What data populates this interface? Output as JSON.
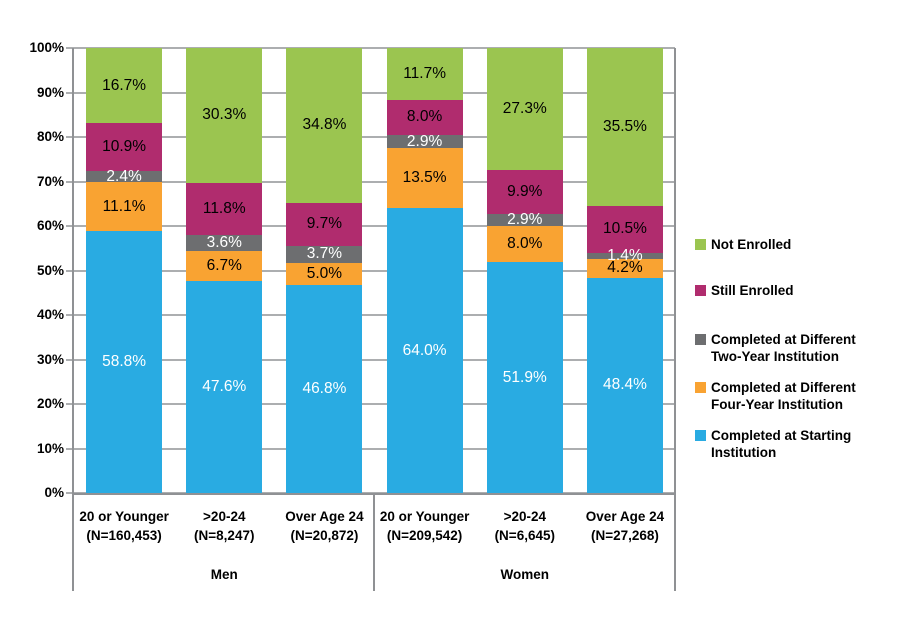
{
  "chart_data": {
    "type": "bar",
    "variant": "100-percent-stacked-column",
    "title": "",
    "x_groups": [
      "Men",
      "Women"
    ],
    "categories": [
      {
        "age_label": "20 or Younger",
        "n_label": "(N=160,453)",
        "group": "Men"
      },
      {
        "age_label": ">20-24",
        "n_label": "(N=8,247)",
        "group": "Men"
      },
      {
        "age_label": "Over Age 24",
        "n_label": "(N=20,872)",
        "group": "Men"
      },
      {
        "age_label": "20 or Younger",
        "n_label": "(N=209,542)",
        "group": "Women"
      },
      {
        "age_label": ">20-24",
        "n_label": "(N=6,645)",
        "group": "Women"
      },
      {
        "age_label": "Over Age 24",
        "n_label": "(N=27,268)",
        "group": "Women"
      }
    ],
    "series": [
      {
        "name": "Completed at Starting Institution",
        "color": "#29ABE2",
        "label_color": "#FFFFFF",
        "values": [
          58.8,
          47.6,
          46.8,
          64.0,
          51.9,
          48.4
        ]
      },
      {
        "name": "Completed at Different Four-Year Institution",
        "color": "#F9A332",
        "label_color": "#000000",
        "values": [
          11.1,
          6.7,
          5.0,
          13.5,
          8.0,
          4.2
        ]
      },
      {
        "name": "Completed at Different Two-Year Institution",
        "color": "#6D6E70",
        "label_color": "#FFFFFF",
        "values": [
          2.4,
          3.6,
          3.7,
          2.9,
          2.9,
          1.4
        ]
      },
      {
        "name": "Still Enrolled",
        "color": "#B02C6E",
        "label_color": "#000000",
        "values": [
          10.9,
          11.8,
          9.7,
          8.0,
          9.9,
          10.5
        ]
      },
      {
        "name": "Not Enrolled",
        "color": "#9BC550",
        "label_color": "#000000",
        "values": [
          16.7,
          30.3,
          34.8,
          11.7,
          27.3,
          35.5
        ]
      }
    ],
    "value_suffix": "%",
    "value_decimals": 1,
    "y_axis": {
      "min": 0,
      "max": 100,
      "tick_step": 10,
      "tick_labels": [
        "100%",
        "90%",
        "80%",
        "70%",
        "60%",
        "50%",
        "40%",
        "30%",
        "20%",
        "10%",
        "0%"
      ]
    },
    "legend": [
      {
        "lines": [
          "Not Enrolled"
        ],
        "color": "#9BC550"
      },
      {
        "lines": [
          "Still Enrolled"
        ],
        "color": "#B02C6E"
      },
      {
        "lines": [
          "Completed at Different",
          "Two-Year Institution"
        ],
        "color": "#6D6E70"
      },
      {
        "lines": [
          "Completed at Different",
          "Four-Year Institution"
        ],
        "color": "#F9A332"
      },
      {
        "lines": [
          "Completed at Starting",
          "Institution"
        ],
        "color": "#29ABE2"
      }
    ],
    "group_labels": [
      "Men",
      "Women"
    ]
  }
}
